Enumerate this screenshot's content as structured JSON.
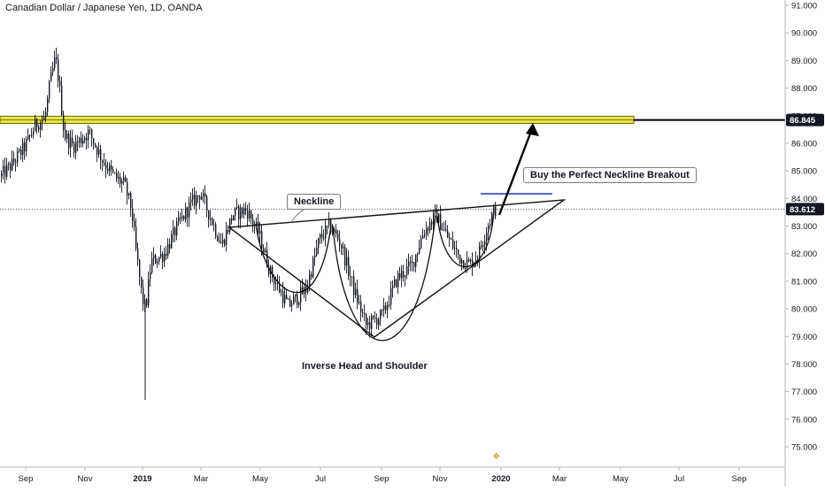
{
  "title": "Canadian Dollar / Japanese Yen, 1D, OANDA",
  "annotations": {
    "neckline": "Neckline",
    "breakout": "Buy the Perfect Neckline Breakout",
    "pattern": "Inverse Head and Shoulder"
  },
  "colors": {
    "candle": "#131722",
    "resistance_fill": "#e8e54a",
    "resistance_border": "#6b6b00",
    "axis_text": "#131722",
    "price_label_bg": "#131722",
    "price_label_text": "#ffffff",
    "breakout_line": "#1f3aa8",
    "watermark": "#c9a227"
  },
  "chart_data": {
    "type": "candlestick",
    "title": "Canadian Dollar / Japanese Yen, 1D, OANDA",
    "x_tick_labels": [
      "Sep",
      "Nov",
      "2019",
      "Mar",
      "May",
      "Jul",
      "Sep",
      "Nov",
      "2020",
      "Mar",
      "May",
      "Jul",
      "Sep"
    ],
    "y_tick_labels": [
      "91.000",
      "90.000",
      "89.000",
      "88.000",
      "87.000",
      "86.000",
      "85.000",
      "84.000",
      "83.000",
      "82.000",
      "81.000",
      "80.000",
      "79.000",
      "78.000",
      "77.000",
      "76.000",
      "75.000"
    ],
    "ylim": [
      74.2,
      91.2
    ],
    "price_labels": [
      {
        "value": 86.845,
        "text": "86.845"
      },
      {
        "value": 83.612,
        "text": "83.612"
      }
    ],
    "resistance_zone": [
      86.72,
      86.98
    ],
    "price_path_monthly": [
      {
        "month": "2018-08",
        "close": 84.0
      },
      {
        "month": "2018-09",
        "close": 86.2
      },
      {
        "month": "2018-10",
        "close": 86.3
      },
      {
        "month": "2018-11",
        "close": 86.1
      },
      {
        "month": "2018-12",
        "close": 83.5
      },
      {
        "month": "2019-01",
        "close": 81.6
      },
      {
        "month": "2019-02",
        "close": 83.5
      },
      {
        "month": "2019-03",
        "close": 83.0
      },
      {
        "month": "2019-04",
        "close": 83.4
      },
      {
        "month": "2019-05",
        "close": 81.3
      },
      {
        "month": "2019-06",
        "close": 82.3
      },
      {
        "month": "2019-07",
        "close": 82.4
      },
      {
        "month": "2019-08",
        "close": 79.9
      },
      {
        "month": "2019-09",
        "close": 81.7
      },
      {
        "month": "2019-10",
        "close": 82.7
      },
      {
        "month": "2019-11",
        "close": 81.8
      },
      {
        "month": "2019-12",
        "close": 83.6
      }
    ],
    "grid": false
  }
}
